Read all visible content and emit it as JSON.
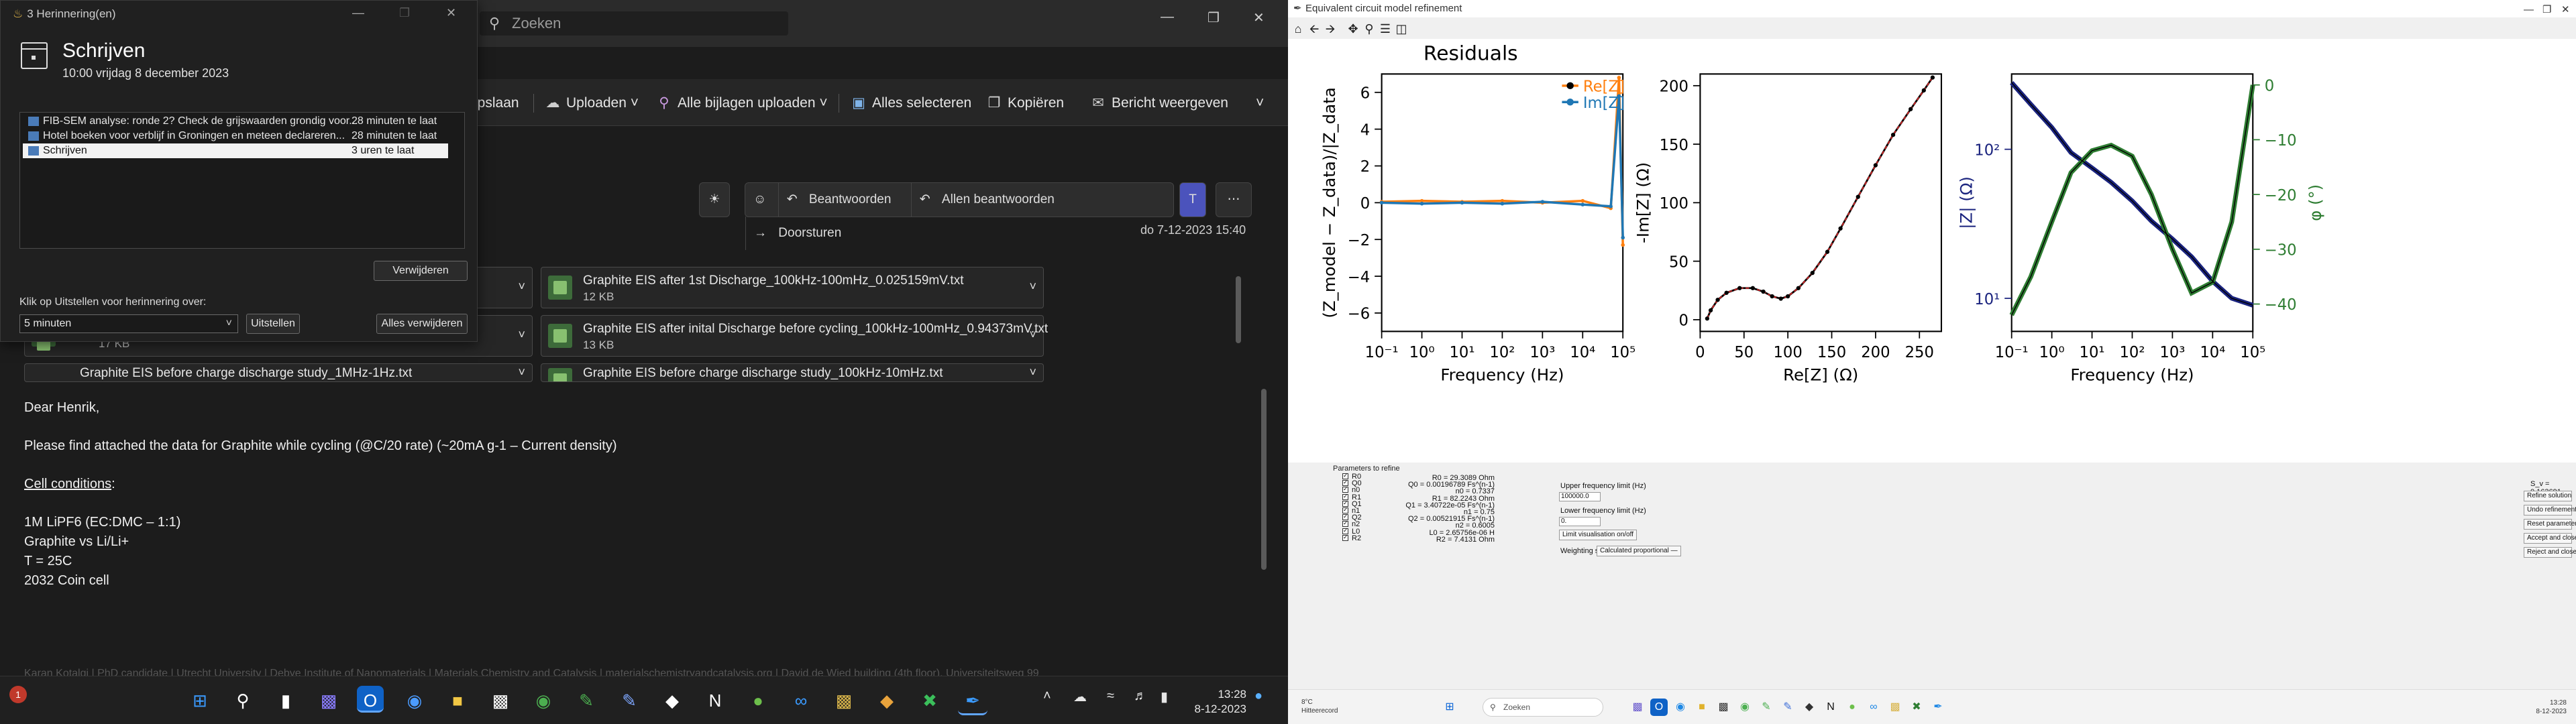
{
  "outlook": {
    "search_placeholder": "Zoeken",
    "ribbon": {
      "opslaan": "opslaan",
      "uploaden": "Uploaden",
      "alle_bijlagen": "Alle bijlagen uploaden",
      "alles_selecteren": "Alles selecteren",
      "kopieren": "Kopiëren",
      "bericht_weergeven": "Bericht weergeven"
    },
    "message_actions": {
      "beantwoorden": "Beantwoorden",
      "allen_beantwoorden": "Allen beantwoorden",
      "doorsturen": "Doorsturen"
    },
    "message_date": "do 7-12-2023 15:40",
    "attachments": [
      {
        "name": "",
        "size": ""
      },
      {
        "name": "Graphite EIS after 1st Discharge_100kHz-100mHz_0.025159mV.txt",
        "size": "12 KB"
      },
      {
        "name": "",
        "size": "17 KB"
      },
      {
        "name": "Graphite EIS after inital Discharge before cycling_100kHz-100mHz_0.94373mV.txt",
        "size": "13 KB"
      },
      {
        "name": "Graphite EIS before charge discharge study_1MHz-1Hz.txt",
        "size": ""
      },
      {
        "name": "Graphite EIS before charge discharge study_100kHz-10mHz.txt",
        "size": ""
      }
    ],
    "body": {
      "greeting": "Dear Henrik,",
      "line1": "Please find attached the data for Graphite while cycling (@C/20 rate) (~20mA g-1 – Current density)",
      "cell_conditions": "Cell conditions",
      "colon": ":",
      "c1": "1M LiPF6 (EC:DMC – 1:1)",
      "c2": "Graphite vs Li/Li+",
      "c3": "T = 25C",
      "c4": "2032 Coin cell"
    },
    "signature": "Karan Kotalgi | PhD candidate | Utrecht University | Debye Institute of Nanomaterials | Materials Chemistry and Catalysis | materialschemistryandcatalysis.org | David de Wied building (4th floor), Universiteitsweg 99"
  },
  "reminder": {
    "window_title": "3 Herinnering(en)",
    "heading": "Schrijven",
    "subheading": "10:00 vrijdag 8 december 2023",
    "items": [
      {
        "subject": "FIB-SEM analyse: ronde 2? Check de grijswaarden grondig voor...",
        "due": "28 minuten te laat"
      },
      {
        "subject": "Hotel boeken voor verblijf in Groningen en meteen declareren...",
        "due": "28 minuten te laat"
      },
      {
        "subject": "Schrijven",
        "due": "3 uren te laat"
      }
    ],
    "dismiss": "Verwijderen",
    "snooze_label": "Klik op Uitstellen voor herinnering over:",
    "snooze_value": "5 minuten",
    "snooze": "Uitstellen",
    "dismiss_all": "Alles verwijderen"
  },
  "taskbar_left": {
    "badge": "1",
    "time": "13:28",
    "date": "8-12-2023"
  },
  "mpl": {
    "window_title": "Equivalent circuit model refinement"
  },
  "plots": {
    "residuals_title": "Residuals",
    "legend_re": "Re[Z]",
    "legend_im": "Im[Z]"
  },
  "chart_data": [
    {
      "type": "line",
      "title": "Residuals",
      "xlabel": "Frequency (Hz)",
      "ylabel": "(Z_model − Z_data)/|Z_data",
      "x_scale": "log",
      "xlim": [
        0.1,
        100000
      ],
      "ylim": [
        -7,
        7
      ],
      "x_ticks": [
        "10⁻¹",
        "10⁰",
        "10¹",
        "10²",
        "10³",
        "10⁴",
        "10⁵"
      ],
      "y_ticks": [
        "−6",
        "−4",
        "−2",
        "0",
        "2",
        "4",
        "6"
      ],
      "series": [
        {
          "name": "Re[Z]",
          "color": "#ff7f0e",
          "x": [
            0.1,
            1,
            10,
            100,
            1000,
            10000,
            50000,
            80000,
            100000
          ],
          "values": [
            0.05,
            0.1,
            0.05,
            0.1,
            0.0,
            0.1,
            -0.3,
            6.8,
            -2.3
          ]
        },
        {
          "name": "Im[Z]",
          "color": "#1f77b4",
          "x": [
            0.1,
            1,
            10,
            100,
            1000,
            10000,
            50000,
            80000,
            100000
          ],
          "values": [
            0.0,
            -0.05,
            0.0,
            -0.05,
            0.05,
            -0.1,
            -0.2,
            5.8,
            -1.9
          ]
        }
      ],
      "legend_position": "top-right"
    },
    {
      "type": "scatter",
      "xlabel": "Re[Z] (Ω)",
      "ylabel": "-Im[Z] (Ω)",
      "xlim": [
        0,
        275
      ],
      "ylim": [
        -10,
        210
      ],
      "x_ticks": [
        "0",
        "50",
        "100",
        "150",
        "200",
        "250"
      ],
      "y_ticks": [
        "0",
        "50",
        "100",
        "150",
        "200"
      ],
      "series": [
        {
          "name": "",
          "x": [
            8,
            12,
            20,
            30,
            45,
            60,
            72,
            82,
            92,
            100,
            112,
            128,
            145,
            160,
            180,
            200,
            220,
            240,
            255,
            265
          ],
          "values": [
            1,
            8,
            17,
            23,
            27,
            27,
            24,
            20,
            18,
            20,
            27,
            40,
            58,
            78,
            105,
            132,
            158,
            180,
            196,
            207
          ]
        }
      ]
    },
    {
      "type": "line",
      "xlabel": "Frequency (Hz)",
      "ylabel": "|Z| (Ω)",
      "y2label": "φ (°)",
      "x_scale": "log",
      "y_scale": "log",
      "xlim": [
        0.1,
        100000
      ],
      "x_ticks": [
        "10⁻¹",
        "10⁰",
        "10¹",
        "10²",
        "10³",
        "10⁴",
        "10⁵"
      ],
      "y_ticks": [
        "10¹",
        "10²"
      ],
      "y2_ticks": [
        "0",
        "−10",
        "−20",
        "−30",
        "−40"
      ],
      "y2lim": [
        -45,
        2
      ],
      "series": [
        {
          "name": "|Z|",
          "color": "#1a237e",
          "x": [
            0.1,
            0.3,
            1,
            3,
            10,
            30,
            100,
            300,
            1000,
            3000,
            10000,
            30000,
            100000
          ],
          "values": [
            280,
            200,
            140,
            95,
            75,
            60,
            45,
            33,
            25,
            19,
            13,
            10,
            9
          ]
        },
        {
          "name": "φ",
          "color": "#2e7d32",
          "x": [
            0.1,
            0.3,
            1,
            3,
            10,
            30,
            100,
            300,
            1000,
            3000,
            10000,
            30000,
            100000
          ],
          "values": [
            -42,
            -35,
            -25,
            -16,
            -12,
            -11,
            -13,
            -20,
            -30,
            -38,
            -36,
            -25,
            0
          ]
        }
      ]
    }
  ],
  "refine": {
    "params_title": "Parameters to refine",
    "params": [
      "R0",
      "Q0",
      "n0",
      "R1",
      "Q1",
      "n1",
      "Q2",
      "n2",
      "L0",
      "R2"
    ],
    "values": [
      "R0 = 29.3089 Ohm",
      "Q0 = 0.00196789 Fs^(n-1)",
      "n0 = 0.7337",
      "R1 = 82.2243 Ohm",
      "Q1 = 3.40722e-05 Fs^(n-1)",
      "n1 = 0.75",
      "Q2 = 0.00521915 Fs^(n-1)",
      "n2 = 0.6005",
      "L0 = 2.65756e-06 H",
      "R2 = 7.4131 Ohm"
    ],
    "upper_label": "Upper frequency limit (Hz)",
    "upper_value": "100000.0",
    "lower_label": "Lower frequency limit (Hz)",
    "lower_value": "0.",
    "limit_vis": "Limit visualisation on/off",
    "weighting_label": "Weighting scheme:",
    "weighting_value": "Calculated proportional",
    "chi": "S_v = 0.163691",
    "refine": "Refine solution",
    "undo": "Undo refinement",
    "reset": "Reset parameters",
    "accept": "Accept and close",
    "reject": "Reject and close"
  },
  "taskbar_right": {
    "temp": "8°C",
    "weather": "Hitteerecord",
    "search": "Zoeken",
    "time": "13:28",
    "date": "8-12-2023"
  }
}
